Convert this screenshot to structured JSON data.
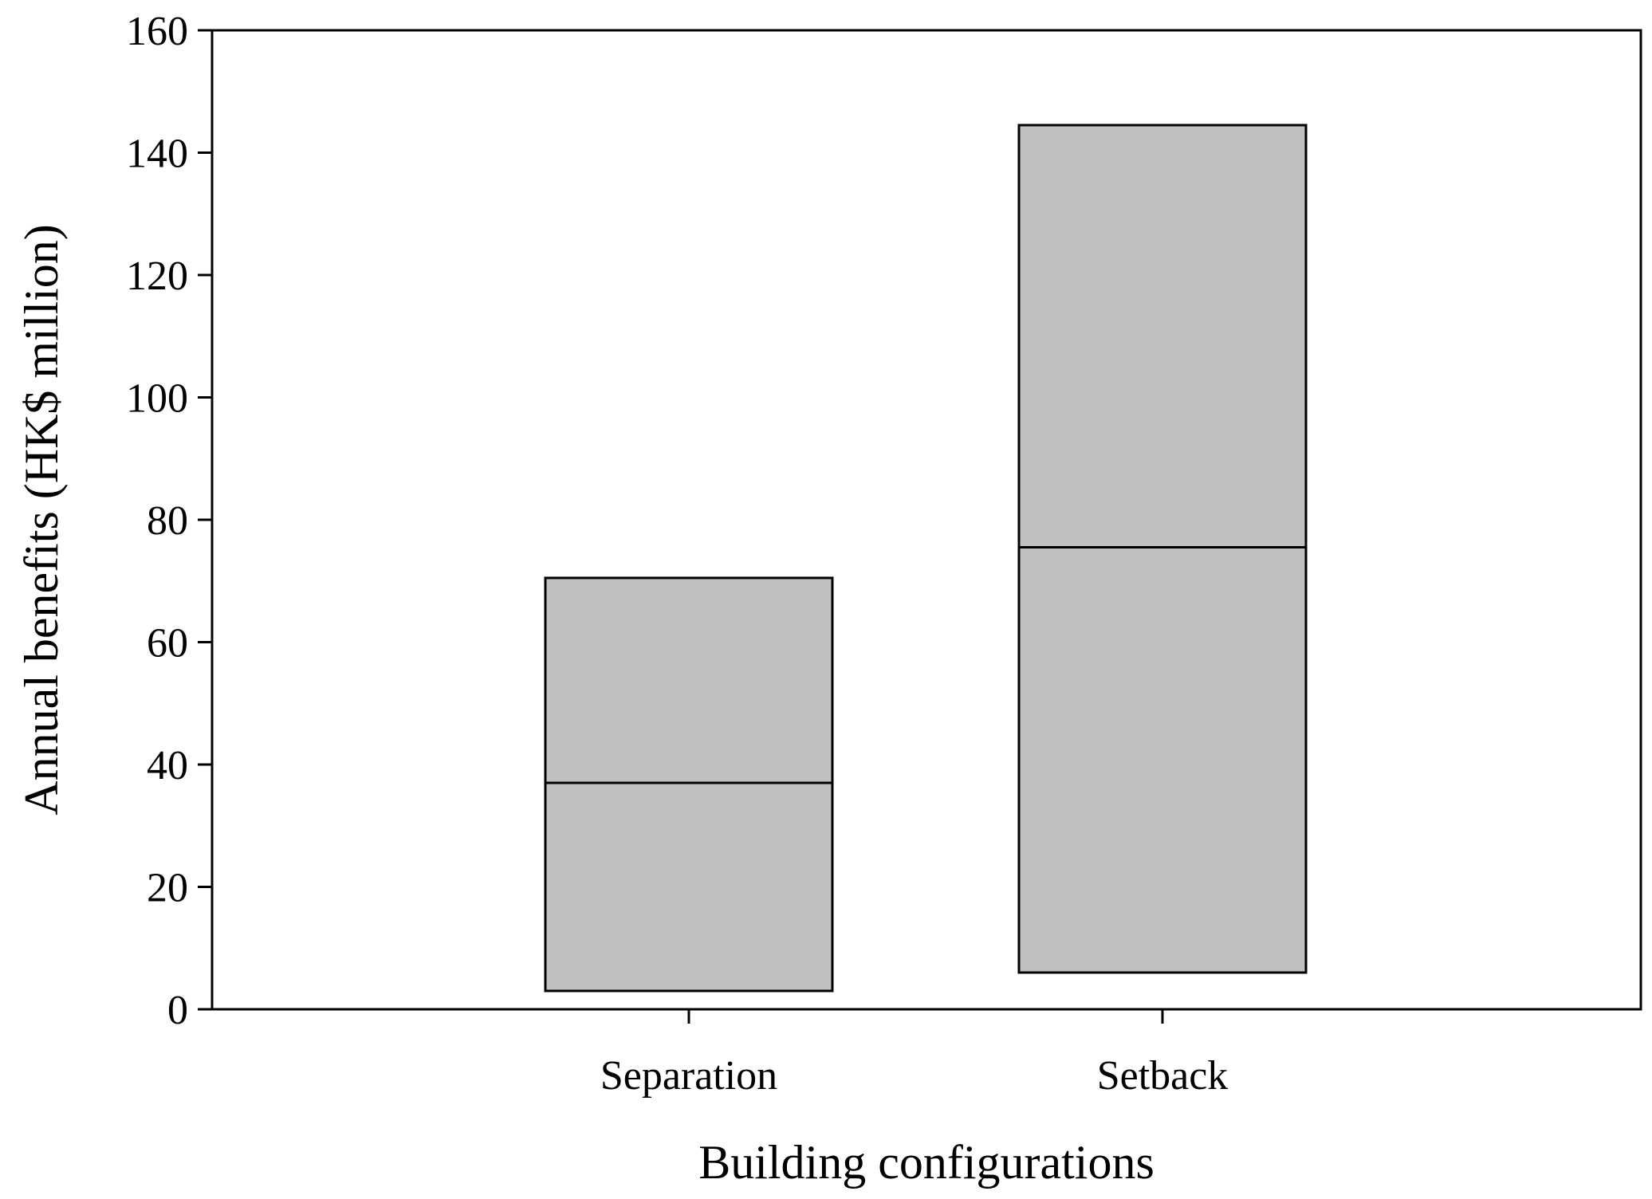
{
  "chart_data": {
    "type": "bar",
    "subtype": "floating-box",
    "title": "",
    "xlabel": "Building configurations",
    "ylabel": "Annual benefits (HK$ million)",
    "ylim": [
      0,
      160
    ],
    "yticks": [
      0,
      20,
      40,
      60,
      80,
      100,
      120,
      140,
      160
    ],
    "categories": [
      "Separation",
      "Setback"
    ],
    "series": [
      {
        "low": [
          3,
          6
        ],
        "mid": [
          37,
          75.5
        ],
        "high": [
          70.5,
          144.5
        ]
      }
    ],
    "grid": false,
    "legend": "none",
    "colors": {
      "bar_fill": "#c0c0c0",
      "stroke": "#000000",
      "background": "#ffffff"
    }
  }
}
